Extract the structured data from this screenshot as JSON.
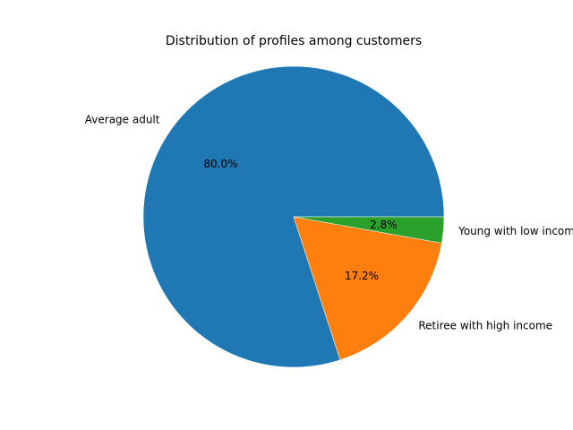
{
  "chart_data": {
    "type": "pie",
    "title": "Distribution of profiles among customers",
    "slices": [
      {
        "label": "Average adult",
        "value": 80.0,
        "pct_text": "80.0%",
        "color": "#1f77b4"
      },
      {
        "label": "Retiree with high income",
        "value": 17.2,
        "pct_text": "17.2%",
        "color": "#ff7f0e"
      },
      {
        "label": "Young with low income",
        "value": 2.8,
        "pct_text": "2.8%",
        "color": "#2ca02c"
      }
    ],
    "start_angle": "0 degrees (3 o'clock)",
    "direction": "counterclockwise",
    "legend": "none"
  }
}
